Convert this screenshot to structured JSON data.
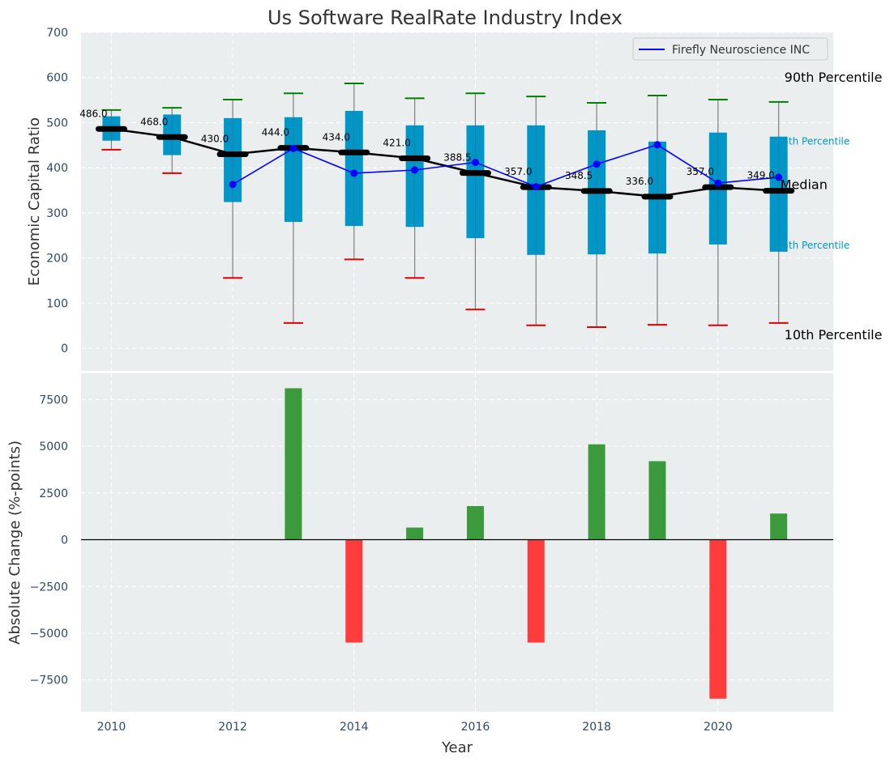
{
  "chart_data": [
    {
      "type": "box",
      "title": "Us Software RealRate Industry Index",
      "xlabel": "",
      "ylabel": "Economic Capital Ratio",
      "ylim": [
        -50,
        700
      ],
      "yticks": [
        0,
        100,
        200,
        300,
        400,
        500,
        600,
        700
      ],
      "xlim": [
        2009.5,
        2021.9
      ],
      "grid": true,
      "legend_position": "top-right",
      "colors": {
        "background": "#eaeeee",
        "box": "#0096c7",
        "median": "#000000",
        "company_line": "#0000ff",
        "p90_cap": "#008000",
        "p10_cap": "#e00000",
        "whisker": "#808080",
        "percentile_blue_label": "#0096c7"
      },
      "years": [
        2010,
        2011,
        2012,
        2013,
        2014,
        2015,
        2016,
        2017,
        2018,
        2019,
        2020,
        2021
      ],
      "p10": [
        440,
        388,
        156,
        56,
        197,
        156,
        86,
        51,
        47,
        52,
        51,
        56
      ],
      "p25": [
        460,
        428,
        324,
        280,
        271,
        269,
        244,
        207,
        208,
        210,
        230,
        214
      ],
      "median": [
        486,
        468,
        430,
        444,
        434,
        421,
        388.5,
        357,
        348.5,
        336,
        357,
        349
      ],
      "p75": [
        514,
        518,
        510,
        512,
        526,
        494,
        494,
        494,
        483,
        458,
        478,
        469
      ],
      "p90": [
        528,
        533,
        551,
        565,
        587,
        554,
        565,
        558,
        544,
        560,
        551,
        546
      ],
      "median_labels": [
        "486.0",
        "468.0",
        "430.0",
        "444.0",
        "434.0",
        "421.0",
        "388.5",
        "357.0",
        "348.5",
        "336.0",
        "357.0",
        "349.0"
      ],
      "series": [
        {
          "name": "Firefly Neuroscience INC",
          "x": [
            2012,
            2013,
            2014,
            2015,
            2016,
            2017,
            2018,
            2019,
            2020,
            2021
          ],
          "values": [
            363,
            443,
            388,
            395,
            412,
            358,
            408,
            451,
            366,
            379
          ]
        }
      ],
      "annotations": {
        "p90": "90th Percentile",
        "p75": "75th Percentile",
        "median": "Median",
        "p25": "25th Percentile",
        "p10": "10th Percentile"
      }
    },
    {
      "type": "bar",
      "xlabel": "Year",
      "ylabel": "Absolute Change (%-points)",
      "ylim": [
        -9200,
        8900
      ],
      "yticks": [
        -7500,
        -5000,
        -2500,
        0,
        2500,
        5000,
        7500
      ],
      "ytick_labels": [
        "−7500",
        "−5000",
        "−2500",
        "0",
        "2500",
        "5000",
        "7500"
      ],
      "xticks": [
        2010,
        2012,
        2014,
        2016,
        2018,
        2020
      ],
      "xlim": [
        2009.5,
        2021.9
      ],
      "grid": true,
      "colors": {
        "positive": "#3a9a3c",
        "negative": "#ff3b3b",
        "background": "#eaeeee"
      },
      "categories": [
        2013,
        2014,
        2015,
        2016,
        2017,
        2018,
        2019,
        2020,
        2021
      ],
      "values": [
        8100,
        -5500,
        650,
        1800,
        -5500,
        5100,
        4200,
        -8500,
        1400
      ]
    }
  ]
}
